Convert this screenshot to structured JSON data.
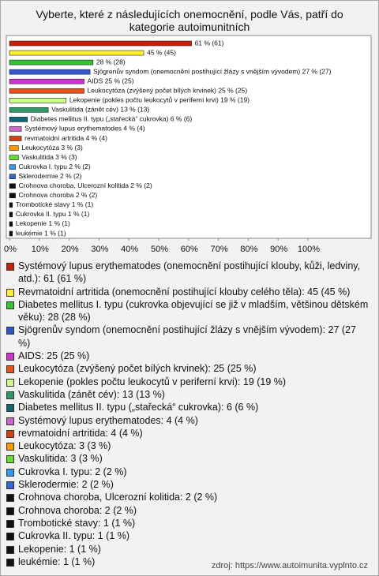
{
  "chart_data": {
    "type": "bar",
    "orientation": "horizontal",
    "title": "Vyberte, které z následujících onemocnění, podle Vás, patří do kategorie autoimunitních",
    "categories": [
      "Systémový lupus erythematodes (onemocnění postihující klouby, kůži, ledviny, atd.): 61 (61 %)",
      "Revmatoidní artritida (onemocnění postihující klouby celého těla): 45 (45 %)",
      "Diabetes mellitus I. typu (cukrovka objevující se již v mladším, většinou dětském věku): 28 (28 %)",
      "Sjögrenův syndom (onemocnění postihující žlázy s vnějším vývodem): 27 (27 %)",
      "AIDS: 25 (25 %)",
      "Leukocytóza (zvýšený počet bílých krvinek): 25 (25 %)",
      "Lekopenie (pokles počtu leukocytů v periferní krvi): 19 (19 %)",
      "Vaskulitida (zánět cév): 13 (13 %)",
      "Diabetes mellitus II. typu („stařecká“ cukrovka): 6 (6 %)",
      "Systémový lupus erythematodes: 4 (4 %)",
      "revmatoidní artritida: 4 (4 %)",
      "Leukocytóza: 3 (3 %)",
      "Vaskulitida: 3 (3 %)",
      "Cukrovka I. typu: 2 (2 %)",
      "Sklerodermie: 2 (2 %)",
      "Crohnova choroba, Ulcerozní kolitida: 2 (2 %)",
      "Crohnova choroba: 2 (2 %)",
      "Trombotické stavy: 1 (1 %)",
      "Cukrovka II. typu: 1 (1 %)",
      "Lekopenie: 1 (1 %)",
      "leukémie: 1 (1 %)"
    ],
    "values": [
      61,
      45,
      28,
      27,
      25,
      25,
      19,
      13,
      6,
      4,
      4,
      3,
      3,
      2,
      2,
      2,
      2,
      1,
      1,
      1,
      1
    ],
    "value_labels": [
      "61 % (61)",
      "45 % (45)",
      "28 % (28)",
      "Sjögrenův syndom (onemocnění postihující žlázy s vnějším vývodem) 27 % (27)",
      "AIDS 25 % (25)",
      "Leukocytóza (zvýšený počet bílých krvinek) 25 % (25)",
      "Lekopenie (pokles počtu leukocytů v periferní krvi) 19 % (19)",
      "Vaskulitida (zánět cév) 13 % (13)",
      "Diabetes mellitus II. typu („stařecká“ cukrovka) 6 % (6)",
      "Systémový lupus erythematodes 4 % (4)",
      "revmatoidní artritida 4 % (4)",
      "Leukocytóza 3 % (3)",
      "Vaskulitida 3 % (3)",
      "Cukrovka I. typu 2 % (2)",
      "Sklerodermie 2 % (2)",
      "Crohnova choroba, Ulcerozní kolitida 2 % (2)",
      "Crohnova choroba 2 % (2)",
      "Trombotické stavy 1 % (1)",
      "Cukrovka II. typu 1 % (1)",
      "Lekopenie 1 % (1)",
      "leukémie 1 % (1)"
    ],
    "colors": [
      "#c81e0a",
      "#ffee33",
      "#33c233",
      "#3355cc",
      "#cc33cc",
      "#e8521a",
      "#ccff88",
      "#2f9966",
      "#106677",
      "#cc66cc",
      "#cc4411",
      "#ff9900",
      "#66dd33",
      "#3399ee",
      "#3366cc",
      "#111111",
      "#111111",
      "#111111",
      "#111111",
      "#111111",
      "#111111"
    ],
    "xlim": [
      0,
      100
    ],
    "xticks": [
      {
        "value": 0,
        "label": "0%"
      },
      {
        "value": 10,
        "label": "10%"
      },
      {
        "value": 20,
        "label": "20%"
      },
      {
        "value": 30,
        "label": "30%"
      },
      {
        "value": 40,
        "label": "40%"
      },
      {
        "value": 50,
        "label": "50%"
      },
      {
        "value": 60,
        "label": "60%"
      },
      {
        "value": 70,
        "label": "70%"
      },
      {
        "value": 80,
        "label": "80%"
      },
      {
        "value": 90,
        "label": "90%"
      },
      {
        "value": 100,
        "label": "100%"
      }
    ],
    "source": "zdroj: https://www.autoimunita.vyplnto.cz"
  }
}
